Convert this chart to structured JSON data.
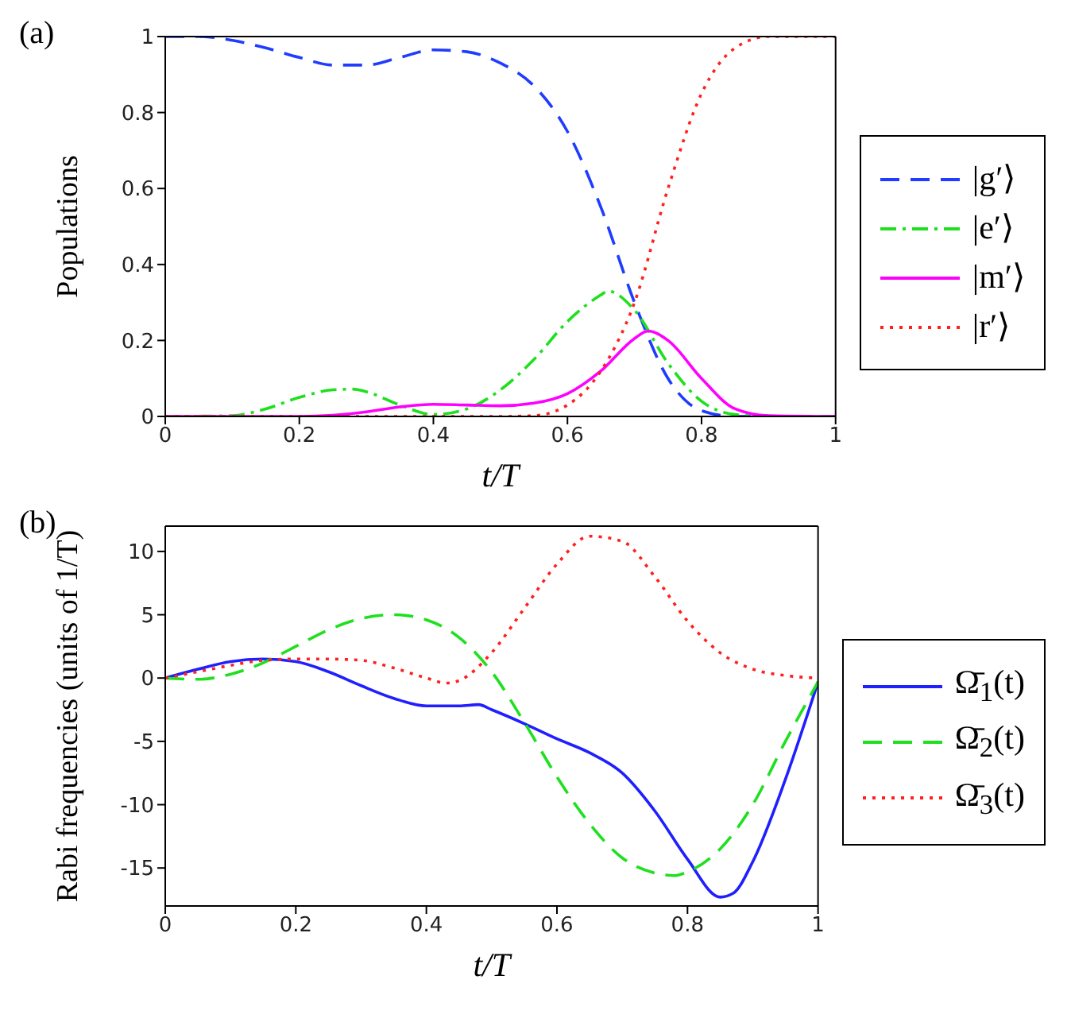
{
  "chart_data": [
    {
      "type": "line",
      "annotations": [
        "(a)"
      ],
      "xlabel": "t/T",
      "ylabel": "Populations",
      "xlim": [
        0,
        1
      ],
      "ylim": [
        0,
        1
      ],
      "xticks": [
        0,
        0.2,
        0.4,
        0.6,
        0.8,
        1
      ],
      "yticks": [
        0,
        0.2,
        0.4,
        0.6,
        0.8,
        1
      ],
      "grid": false,
      "legend": "right",
      "series": [
        {
          "name": "|g′⟩",
          "color": "#1f3cff",
          "line_style": "dashed",
          "x": [
            0,
            0.05,
            0.1,
            0.15,
            0.2,
            0.25,
            0.3,
            0.35,
            0.4,
            0.45,
            0.5,
            0.55,
            0.6,
            0.65,
            0.7,
            0.75,
            0.8,
            0.85,
            0.9,
            1
          ],
          "values": [
            1,
            1,
            0.99,
            0.97,
            0.945,
            0.925,
            0.925,
            0.945,
            0.965,
            0.96,
            0.93,
            0.87,
            0.75,
            0.55,
            0.3,
            0.1,
            0.015,
            0,
            0,
            0
          ]
        },
        {
          "name": "|e′⟩",
          "color": "#1ee01e",
          "line_style": "dashdot",
          "x": [
            0,
            0.1,
            0.15,
            0.2,
            0.25,
            0.28,
            0.3,
            0.35,
            0.4,
            0.45,
            0.5,
            0.55,
            0.6,
            0.65,
            0.66,
            0.7,
            0.75,
            0.8,
            0.85,
            0.9,
            1
          ],
          "values": [
            0,
            0.002,
            0.02,
            0.05,
            0.07,
            0.072,
            0.065,
            0.03,
            0.005,
            0.02,
            0.07,
            0.15,
            0.25,
            0.32,
            0.33,
            0.28,
            0.14,
            0.04,
            0.005,
            0,
            0
          ]
        },
        {
          "name": "|m′⟩",
          "color": "#ff00ff",
          "line_style": "solid",
          "x": [
            0,
            0.2,
            0.25,
            0.3,
            0.35,
            0.4,
            0.45,
            0.5,
            0.55,
            0.6,
            0.65,
            0.7,
            0.72,
            0.75,
            0.8,
            0.85,
            0.9,
            1
          ],
          "values": [
            0,
            0,
            0.003,
            0.012,
            0.025,
            0.032,
            0.03,
            0.028,
            0.035,
            0.06,
            0.12,
            0.205,
            0.225,
            0.2,
            0.1,
            0.02,
            0.002,
            0
          ]
        },
        {
          "name": "|r′⟩",
          "color": "#ff2020",
          "line_style": "dotted",
          "x": [
            0,
            0.5,
            0.55,
            0.6,
            0.65,
            0.7,
            0.75,
            0.8,
            0.85,
            0.9,
            1
          ],
          "values": [
            0,
            0,
            0.002,
            0.03,
            0.12,
            0.3,
            0.6,
            0.85,
            0.97,
            1,
            1
          ]
        }
      ]
    },
    {
      "type": "line",
      "annotations": [
        "(b)"
      ],
      "xlabel": "t/T",
      "ylabel": "Rabi frequencies (units of 1/T)",
      "xlim": [
        0,
        1
      ],
      "ylim": [
        -18,
        12
      ],
      "xticks": [
        0,
        0.2,
        0.4,
        0.6,
        0.8,
        1
      ],
      "yticks": [
        -15,
        -10,
        -5,
        0,
        5,
        10
      ],
      "grid": false,
      "legend": "right",
      "series": [
        {
          "name": "Ω̄$_{1}$(t)",
          "color": "#1f1fff",
          "line_style": "solid",
          "x": [
            0,
            0.05,
            0.1,
            0.15,
            0.2,
            0.25,
            0.3,
            0.35,
            0.4,
            0.45,
            0.48,
            0.5,
            0.55,
            0.6,
            0.65,
            0.7,
            0.75,
            0.8,
            0.85,
            0.87,
            0.9,
            0.95,
            1
          ],
          "values": [
            0,
            0.7,
            1.3,
            1.5,
            1.3,
            0.5,
            -0.6,
            -1.6,
            -2.2,
            -2.2,
            -2.1,
            -2.5,
            -3.6,
            -4.8,
            -5.9,
            -7.5,
            -10.5,
            -14.3,
            -17.3,
            -17,
            -14.5,
            -8,
            -0.3
          ]
        },
        {
          "name": "Ω̄$_{2}$(t)",
          "color": "#1ee01e",
          "line_style": "dashed",
          "x": [
            0,
            0.05,
            0.1,
            0.15,
            0.2,
            0.25,
            0.3,
            0.35,
            0.4,
            0.45,
            0.5,
            0.55,
            0.6,
            0.65,
            0.7,
            0.75,
            0.78,
            0.8,
            0.85,
            0.9,
            0.95,
            1
          ],
          "values": [
            0,
            -0.1,
            0.3,
            1.2,
            2.5,
            3.8,
            4.7,
            5,
            4.6,
            3.2,
            0.5,
            -3.5,
            -7.8,
            -11.5,
            -14.2,
            -15.4,
            -15.6,
            -15.3,
            -13.5,
            -10,
            -5,
            -0.3
          ]
        },
        {
          "name": "Ω̄$_{3}$(t)",
          "color": "#ff2020",
          "line_style": "dotted",
          "x": [
            0,
            0.05,
            0.1,
            0.15,
            0.2,
            0.25,
            0.3,
            0.35,
            0.4,
            0.43,
            0.45,
            0.5,
            0.55,
            0.6,
            0.65,
            0.7,
            0.75,
            0.8,
            0.85,
            0.9,
            0.95,
            1
          ],
          "values": [
            0,
            0.5,
            1,
            1.4,
            1.5,
            1.5,
            1.4,
            0.8,
            0,
            -0.4,
            -0.2,
            2,
            5.5,
            9,
            11.2,
            10.8,
            8,
            4.5,
            2,
            0.7,
            0.2,
            0
          ]
        }
      ]
    }
  ]
}
